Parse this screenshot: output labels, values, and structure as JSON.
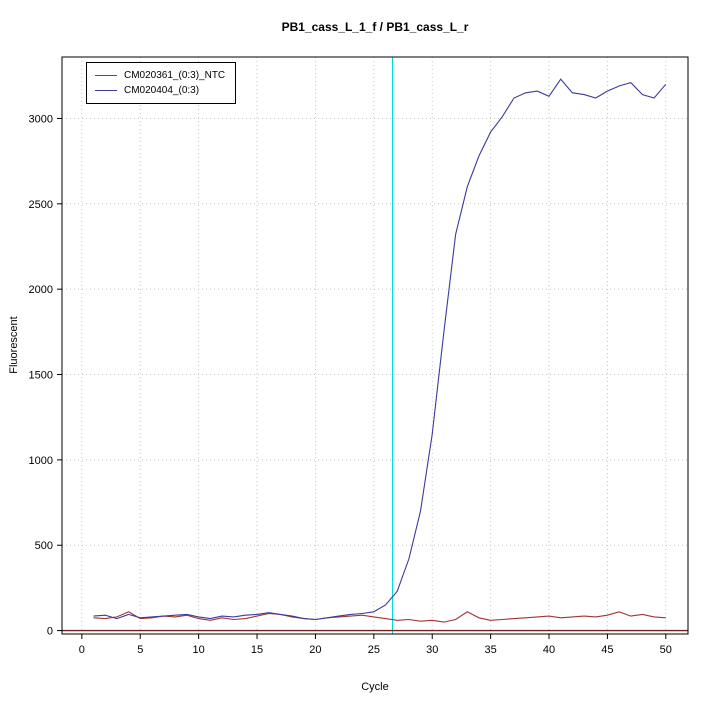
{
  "chart_data": {
    "type": "line",
    "title": "PB1_cass_L_1_f / PB1_cass_L_r",
    "xlabel": "Cycle",
    "ylabel": "Fluorescent",
    "xlim": [
      -1.7,
      51.9
    ],
    "ylim": [
      -20,
      3360
    ],
    "x_ticks": [
      0,
      5,
      10,
      15,
      20,
      25,
      30,
      35,
      40,
      45,
      50
    ],
    "y_ticks": [
      0,
      500,
      1000,
      1500,
      2000,
      2500,
      3000
    ],
    "grid": true,
    "grid_color": "#c6c6c6",
    "legend_position": "top-left",
    "x": [
      1,
      2,
      3,
      4,
      5,
      6,
      7,
      8,
      9,
      10,
      11,
      12,
      13,
      14,
      15,
      16,
      17,
      18,
      19,
      20,
      21,
      22,
      23,
      24,
      25,
      26,
      27,
      28,
      29,
      30,
      31,
      32,
      33,
      34,
      35,
      36,
      37,
      38,
      39,
      40,
      41,
      42,
      43,
      44,
      45,
      46,
      47,
      48,
      49,
      50
    ],
    "series": [
      {
        "name": "CM020361_(0:3)_NTC",
        "color": "#a03434",
        "values": [
          75,
          70,
          80,
          110,
          70,
          75,
          85,
          80,
          90,
          70,
          60,
          75,
          65,
          70,
          85,
          100,
          95,
          80,
          70,
          65,
          75,
          80,
          85,
          90,
          80,
          70,
          60,
          65,
          55,
          60,
          50,
          65,
          110,
          75,
          60,
          65,
          70,
          75,
          80,
          85,
          75,
          80,
          85,
          80,
          90,
          110,
          85,
          95,
          80,
          75
        ]
      },
      {
        "name": "CM020404_(0:3)",
        "color": "#3b3b9e",
        "values": [
          85,
          90,
          70,
          95,
          75,
          80,
          85,
          90,
          95,
          80,
          70,
          85,
          80,
          90,
          95,
          105,
          95,
          85,
          70,
          65,
          75,
          85,
          95,
          100,
          110,
          150,
          230,
          420,
          700,
          1150,
          1750,
          2320,
          2600,
          2780,
          2920,
          3010,
          3120,
          3150,
          3160,
          3130,
          3230,
          3150,
          3140,
          3120,
          3160,
          3190,
          3210,
          3140,
          3120,
          3200
        ]
      }
    ],
    "baseline_line": {
      "y": 0,
      "color": "#7a1f1f"
    },
    "ct_marker_line": {
      "x": 26.6,
      "color": "#00dcdc"
    }
  }
}
